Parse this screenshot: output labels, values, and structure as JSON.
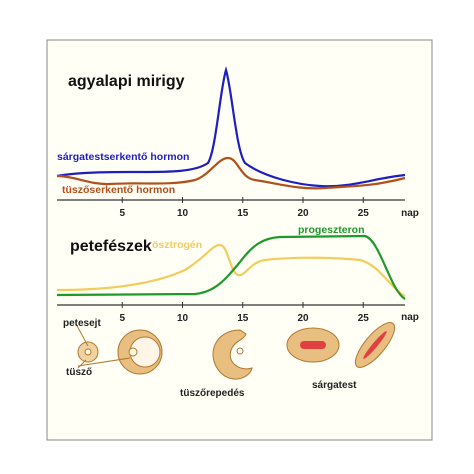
{
  "top_chart": {
    "title": "agyalapi mirigy",
    "series": [
      "sárgatestserkentő hormon",
      "tüszőserkentő hormon"
    ],
    "xticks": [
      5,
      10,
      15,
      20,
      25
    ],
    "x_unit": "nap"
  },
  "bottom_chart": {
    "title": "petefészek",
    "series": [
      "ösztrogén",
      "progeszteron"
    ],
    "xticks": [
      5,
      10,
      15,
      20,
      25
    ],
    "x_unit": "nap"
  },
  "stages": {
    "petesejt": "petesejt",
    "tuszo": "tüsző",
    "tuszorepedes": "tüszőrepedés",
    "sargatest": "sárgatest"
  }
}
